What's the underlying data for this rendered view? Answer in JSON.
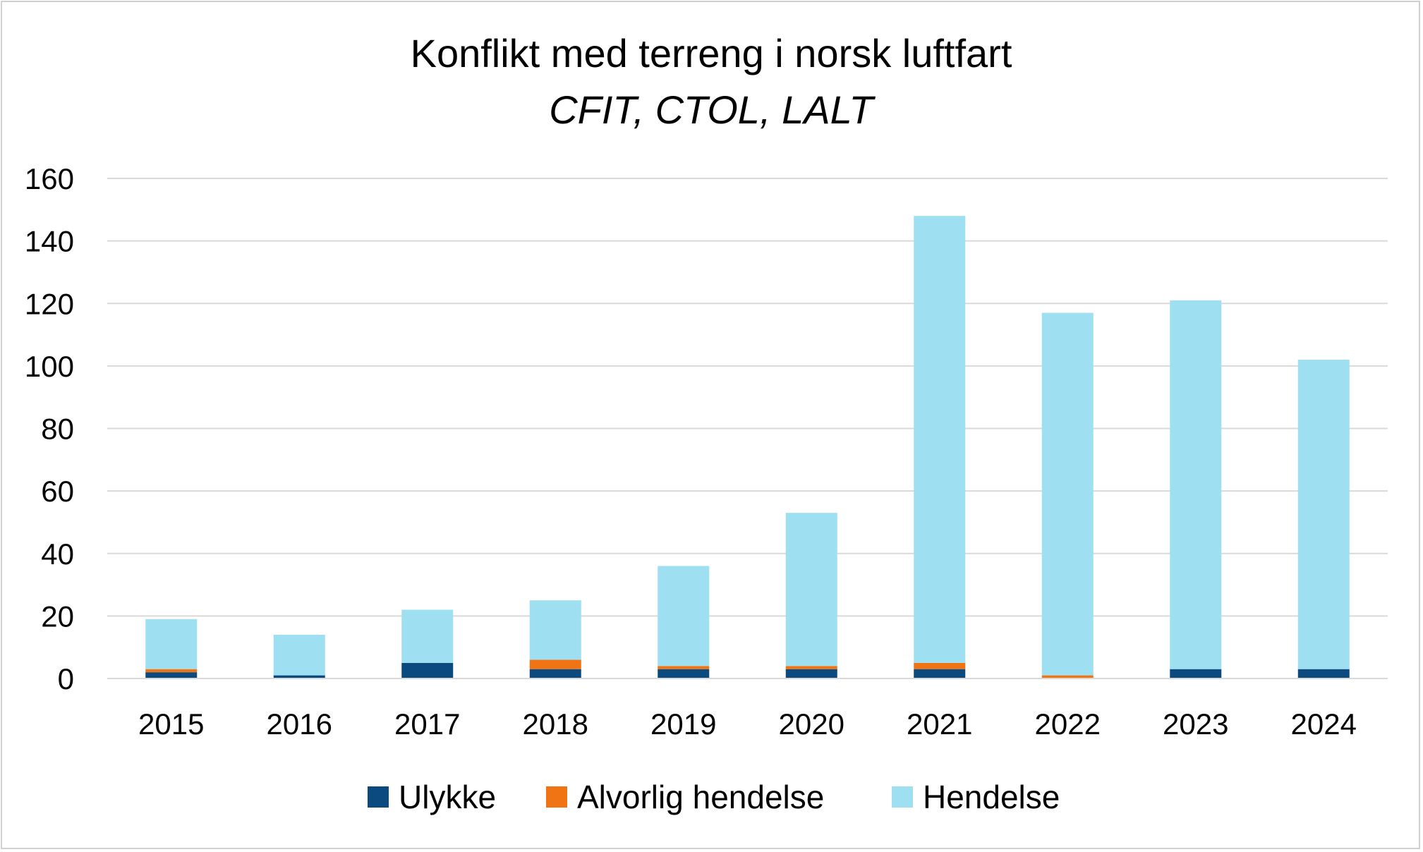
{
  "chart_data": {
    "type": "bar",
    "stacked": true,
    "title": "Konflikt med terreng i norsk luftfart",
    "subtitle": "CFIT, CTOL, LALT",
    "xlabel": "",
    "ylabel": "",
    "categories": [
      "2015",
      "2016",
      "2017",
      "2018",
      "2019",
      "2020",
      "2021",
      "2022",
      "2023",
      "2024"
    ],
    "ylim": [
      0,
      160
    ],
    "yticks": [
      0,
      20,
      40,
      60,
      80,
      100,
      120,
      140,
      160
    ],
    "grid": true,
    "legend_position": "bottom",
    "series": [
      {
        "name": "Ulykke",
        "color": "#0a4a7e",
        "values": [
          2,
          1,
          5,
          3,
          3,
          3,
          3,
          0,
          3,
          3
        ]
      },
      {
        "name": "Alvorlig hendelse",
        "color": "#f07414",
        "values": [
          1,
          0,
          0,
          3,
          1,
          1,
          2,
          1,
          0,
          0
        ]
      },
      {
        "name": "Hendelse",
        "color": "#9edff2",
        "values": [
          16,
          13,
          17,
          19,
          32,
          49,
          143,
          116,
          118,
          99
        ]
      }
    ]
  }
}
